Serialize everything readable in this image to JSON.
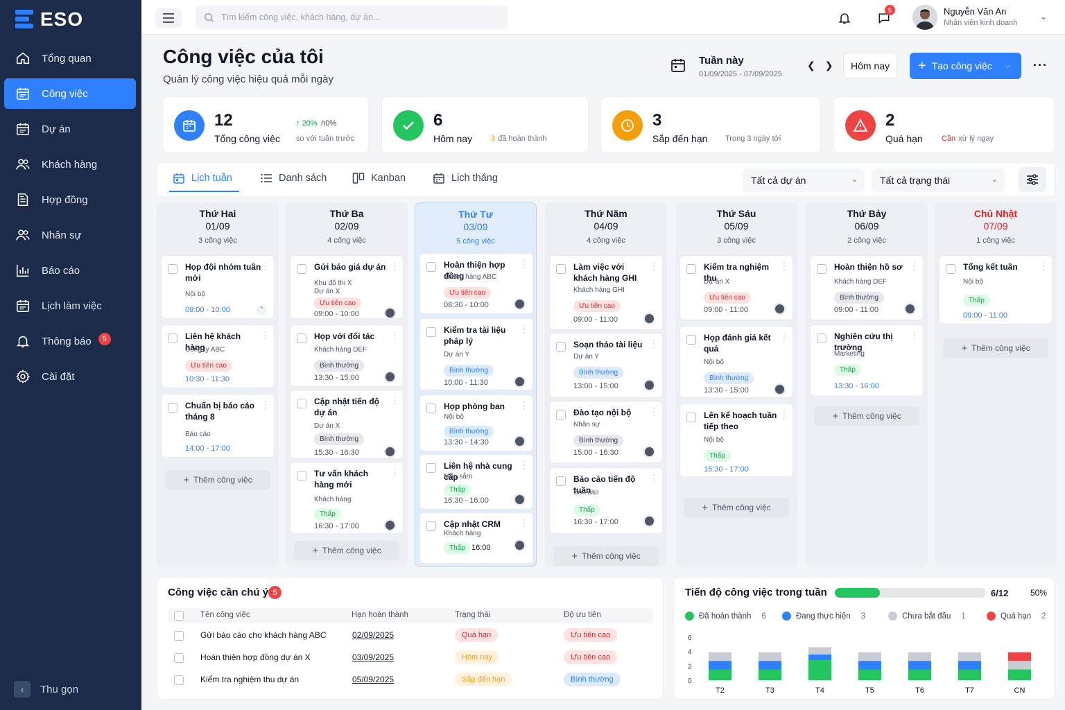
{
  "brand": {
    "name": "ESO"
  },
  "sidebar": {
    "items": [
      {
        "label": "Tổng quan",
        "icon": "home-icon"
      },
      {
        "label": "Công việc",
        "icon": "calendar-icon",
        "active": true
      },
      {
        "label": "Dự án",
        "icon": "calendar-icon"
      },
      {
        "label": "Khách hàng",
        "icon": "users-icon"
      },
      {
        "label": "Hợp đồng",
        "icon": "document-icon"
      },
      {
        "label": "Nhân sự",
        "icon": "users-icon"
      },
      {
        "label": "Báo cáo",
        "icon": "bar-chart-icon"
      },
      {
        "label": "Lịch làm việc",
        "icon": "calendar-icon"
      },
      {
        "label": "Thông báo",
        "icon": "bell-icon",
        "badge": "5"
      },
      {
        "label": "Cài đặt",
        "icon": "gear-icon"
      }
    ],
    "collapse_label": "Thu gọn"
  },
  "topbar": {
    "search_placeholder": "Tìm kiếm công việc, khách hàng, dự án...",
    "chat_badge": "5",
    "user": {
      "name": "Nguyễn Văn An",
      "role": "Nhân viên kinh doanh"
    }
  },
  "header": {
    "title": "Công việc của tôi",
    "subtitle": "Quản lý công việc hiệu quả mỗi ngày",
    "week_label": "Tuần này",
    "week_range": "01/09/2025 - 07/09/2025",
    "today_label": "Hôm nay",
    "create_label": "Tạo công việc"
  },
  "stats": [
    {
      "num": "12",
      "label": "Tổng công việc",
      "trend": "20%",
      "trend_suffix": "ก0%",
      "note": "so với tuần trước",
      "color": "#2f80ff",
      "icon": "calendar-icon"
    },
    {
      "num": "6",
      "label": "Hôm nay",
      "note_num": "3",
      "note": "đã hoàn thành",
      "color": "#22c55e",
      "icon": "check-icon"
    },
    {
      "num": "3",
      "label": "Sắp đến hạn",
      "note": "Trong 3 ngày tới",
      "color": "#f59e0b",
      "icon": "clock-icon"
    },
    {
      "num": "2",
      "label": "Quá hạn",
      "note_strong": "Cần",
      "note": "xử lý ngay",
      "color": "#ef4444",
      "icon": "warning-icon"
    }
  ],
  "tabs": [
    {
      "label": "Lịch tuần",
      "active": true
    },
    {
      "label": "Danh sách"
    },
    {
      "label": "Kanban"
    },
    {
      "label": "Lịch tháng"
    }
  ],
  "filters": {
    "project": "Tất cả dự án",
    "status": "Tất cả trạng thái"
  },
  "add_task_label": "Thêm công việc",
  "days": [
    {
      "day": "Thứ Hai",
      "date": "01/09",
      "count": "3 công việc",
      "tasks": [
        {
          "title": "Họp đội nhóm tuần mới",
          "sub": "Nội bộ",
          "time": "09:00 - 10:00",
          "time_blue": true,
          "extra": "plus"
        },
        {
          "title": "Liên hệ khách hàng",
          "sub": "Công ty ABC",
          "pill": "Ưu tiên cao",
          "ptype": "high",
          "time": "10:30 - 11:30",
          "time_blue": true
        },
        {
          "title": "Chuẩn bị báo cáo tháng 8",
          "sub": "Báo cáo",
          "time": "14:00 - 17:00",
          "time_blue": true
        }
      ]
    },
    {
      "day": "Thứ Ba",
      "date": "02/09",
      "count": "4 công việc",
      "tasks": [
        {
          "title": "Gửi báo giá dự án",
          "sub": "Khu đô thị X",
          "sub2": "Dự án X",
          "pill": "Ưu tiên cao",
          "ptype": "high",
          "time": "09:00 - 10:00"
        },
        {
          "title": "Họp với đối tác",
          "sub": "Khách hàng DEF",
          "pill": "Bình thường",
          "ptype": "normal",
          "time": "13:30 - 15:00"
        },
        {
          "title": "Cập nhật tiến độ dự án",
          "sub": "Dự án X",
          "pill": "Bình thường",
          "ptype": "normal",
          "time": "15:30 - 16:30"
        },
        {
          "title": "Tư vấn khách hàng mới",
          "sub": "Khách hàng",
          "pill": "Thấp",
          "ptype": "low",
          "time": "16:30 - 17:00"
        }
      ]
    },
    {
      "day": "Thứ Tư",
      "date": "03/09",
      "count": "5 công việc",
      "today": true,
      "tasks": [
        {
          "title": "Hoàn thiện hợp đồng",
          "sub": "Khách hàng ABC",
          "pill": "Ưu tiên cao",
          "ptype": "high",
          "time": "08:30 - 10:00"
        },
        {
          "title": "Kiểm tra tài liệu pháp lý",
          "sub": "Dự án Y",
          "pill": "Bình thường",
          "ptype": "normal-blue",
          "time": "10:00 - 11:30"
        },
        {
          "title": "Họp phòng ban",
          "sub": "Nội bộ",
          "pill": "Bình thường",
          "ptype": "normal-blue",
          "time": "13:30 - 14:30"
        },
        {
          "title": "Liên hệ nhà cung cấp",
          "sub": "Mua sắm",
          "pill": "Thấp",
          "ptype": "low",
          "time": "16:30 - 16:00"
        },
        {
          "title": "Cập nhật CRM",
          "sub": "Khách hàng",
          "pill": "Thấp",
          "ptype": "low",
          "time": "16:00",
          "inline": true
        }
      ]
    },
    {
      "day": "Thứ Năm",
      "date": "04/09",
      "count": "4 công việc",
      "tasks": [
        {
          "title": "Làm việc với khách hàng GHI",
          "sub": "Khách hàng GHI",
          "pill": "Ưu tiên cao",
          "ptype": "high",
          "time": "09:00 - 11:00"
        },
        {
          "title": "Soạn thảo tài liệu",
          "sub": "Dự án Y",
          "pill": "Bình thường",
          "ptype": "normal-blue",
          "time": "13:00 - 15:00"
        },
        {
          "title": "Đào tạo nội bộ",
          "sub": "Nhân sự",
          "pill": "Bình thường",
          "ptype": "normal",
          "time": "15:00 - 16:30"
        },
        {
          "title": "Báo cáo tiến độ tuần",
          "sub": "Báo cáo",
          "pill": "Thấp",
          "ptype": "low",
          "time": "16:30 - 17:00"
        }
      ]
    },
    {
      "day": "Thứ Sáu",
      "date": "05/09",
      "count": "3 công việc",
      "tasks": [
        {
          "title": "Kiểm tra nghiệm thu",
          "sub": "Dự án X",
          "pill": "Ưu tiên cao",
          "ptype": "high",
          "time": "09:00 - 11:00"
        },
        {
          "title": "Họp đánh giá kết quả",
          "sub": "Nội bộ",
          "pill": "Bình thường",
          "ptype": "normal-blue",
          "time": "13:30 - 15:00"
        },
        {
          "title": "Lên kế hoạch tuần tiếp theo",
          "sub": "Nội bộ",
          "pill": "Thấp",
          "ptype": "low",
          "time": "15:30 - 17:00",
          "time_blue": true
        }
      ]
    },
    {
      "day": "Thứ Bảy",
      "date": "06/09",
      "count": "2 công việc",
      "tasks": [
        {
          "title": "Hoàn thiện hồ sơ",
          "sub": "Khách hàng DEF",
          "pill": "Bình thường",
          "ptype": "normal",
          "time": "09:00 - 11:00"
        },
        {
          "title": "Nghiên cứu thị trường",
          "sub": "Marketing",
          "pill": "Thấp",
          "ptype": "low",
          "time": "13:30 - 16:00",
          "time_blue": true
        }
      ]
    },
    {
      "day": "Chủ Nhật",
      "date": "07/09",
      "count": "1 công việc",
      "sunday": true,
      "tasks": [
        {
          "title": "Tổng kết tuần",
          "sub": "Nội bộ",
          "pill": "Thấp",
          "ptype": "low",
          "time": "09:00 - 11:00",
          "time_blue": true
        }
      ]
    }
  ],
  "attention": {
    "title": "Công việc cần chú ý",
    "badge": "5",
    "headers": [
      "Tên công việc",
      "Hạn hoàn thành",
      "Trạng thái",
      "Độ ưu tiên"
    ],
    "rows": [
      {
        "name": "Gửi báo cáo cho khách hàng ABC",
        "due": "02/09/2025",
        "status": "Quá hạn",
        "stype": "red",
        "priority": "Ưu tiên cao",
        "ptype": "red"
      },
      {
        "name": "Hoàn thiện hợp đồng dự án X",
        "due": "03/09/2025",
        "status": "Hôm nay",
        "stype": "orange",
        "priority": "Ưu tiên cao",
        "ptype": "red"
      },
      {
        "name": "Kiểm tra nghiệm thu dự án",
        "due": "05/09/2025",
        "status": "Sắp đến hạn",
        "stype": "orange",
        "priority": "Bình thường",
        "ptype": "blue"
      }
    ]
  },
  "progress": {
    "title": "Tiến độ công việc trong tuần",
    "done": 6,
    "total": 12,
    "count_text": "6/12",
    "percent": "50%",
    "legend": [
      {
        "label": "Đã hoàn thành",
        "count": "6",
        "color": "#22c55e"
      },
      {
        "label": "Đang thực hiện",
        "count": "3",
        "color": "#2f80ff"
      },
      {
        "label": "Chưa bắt đầu",
        "count": "1",
        "color": "#c8ccd4"
      },
      {
        "label": "Quá hạn",
        "count": "2",
        "color": "#ef4444"
      }
    ]
  },
  "chart_data": {
    "type": "bar",
    "stacked": true,
    "categories": [
      "T2",
      "T3",
      "T4",
      "T5",
      "T6",
      "T7",
      "CN"
    ],
    "yticks": [
      0,
      2,
      4,
      6
    ],
    "ylim": [
      0,
      6
    ],
    "series": [
      {
        "name": "Đã hoàn thành",
        "color": "#22c55e",
        "values": [
          1.5,
          1.5,
          2.8,
          1.5,
          1.5,
          1.5,
          1.5
        ]
      },
      {
        "name": "Đang thực hiện",
        "color": "#2f80ff",
        "values": [
          1.2,
          1.2,
          0.8,
          1.2,
          1.2,
          1.2,
          0
        ]
      },
      {
        "name": "Chưa bắt đầu",
        "color": "#c8ccd4",
        "values": [
          1.2,
          1.2,
          1.0,
          1.2,
          1.2,
          1.2,
          1.2
        ]
      },
      {
        "name": "Quá hạn",
        "color": "#ef4444",
        "values": [
          0,
          0,
          0,
          0,
          0,
          0,
          1.2
        ]
      }
    ]
  }
}
